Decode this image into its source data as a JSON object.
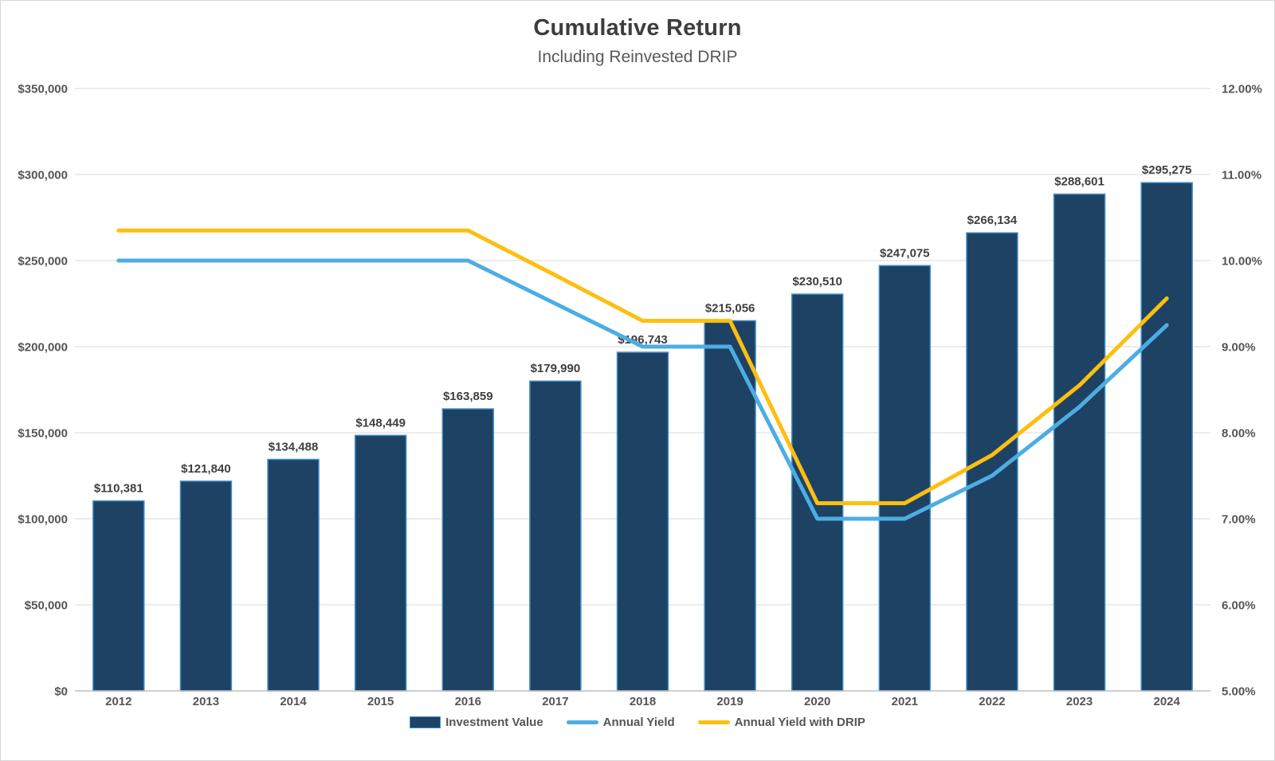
{
  "title": "Cumulative Return",
  "subtitle": "Including Reinvested DRIP",
  "chart_data": {
    "type": "bar",
    "subtype": "combo-bar-line",
    "title": "Cumulative Return",
    "subtitle": "Including Reinvested DRIP",
    "categories": [
      "2012",
      "2013",
      "2014",
      "2015",
      "2016",
      "2017",
      "2018",
      "2019",
      "2020",
      "2021",
      "2022",
      "2023",
      "2024"
    ],
    "series": [
      {
        "name": "Investment Value",
        "type": "bar",
        "axis": "left",
        "values": [
          110381,
          121840,
          134488,
          148449,
          163859,
          179990,
          196743,
          215056,
          230510,
          247075,
          266134,
          288601,
          295275
        ],
        "labels": [
          "$110,381",
          "$121,840",
          "$134,488",
          "$148,449",
          "$163,859",
          "$179,990",
          "$196,743",
          "$215,056",
          "$230,510",
          "$247,075",
          "$266,134",
          "$288,601",
          "$295,275"
        ]
      },
      {
        "name": "Annual Yield",
        "type": "line",
        "axis": "right",
        "values": [
          10.0,
          10.0,
          10.0,
          10.0,
          10.0,
          9.5,
          9.0,
          9.0,
          7.0,
          7.0,
          7.5,
          8.3,
          9.25
        ]
      },
      {
        "name": "Annual Yield with DRIP",
        "type": "line",
        "axis": "right",
        "values": [
          10.35,
          10.35,
          10.35,
          10.35,
          10.35,
          9.83,
          9.3,
          9.3,
          7.18,
          7.18,
          7.74,
          8.55,
          9.56
        ]
      }
    ],
    "left_axis": {
      "min": 0,
      "max": 350000,
      "step": 50000,
      "tick_labels_top_to_bottom": [
        "$350,000",
        "$300,000",
        "$250,000",
        "$200,000",
        "$150,000",
        "$100,000",
        "$50,000",
        "$0"
      ]
    },
    "right_axis": {
      "min": 5,
      "max": 12,
      "step": 1,
      "tick_labels_top_to_bottom": [
        "12.00%",
        "11.00%",
        "10.00%",
        "9.00%",
        "8.00%",
        "7.00%",
        "6.00%",
        "5.00%"
      ]
    },
    "grid": true,
    "legend_position": "bottom"
  },
  "colors": {
    "bar_fill": "#1e4264",
    "bar_border": "#4191c9",
    "annual_yield_line": "#4dade3",
    "drip_line": "#fdbf0f",
    "gridline": "#dadada",
    "axis_line": "#bfbfbf",
    "title": "#3d3d3d",
    "subtitle": "#595959",
    "axis_label": "#555555",
    "data_label": "#3f3f3f",
    "legend_text": "#555555"
  }
}
